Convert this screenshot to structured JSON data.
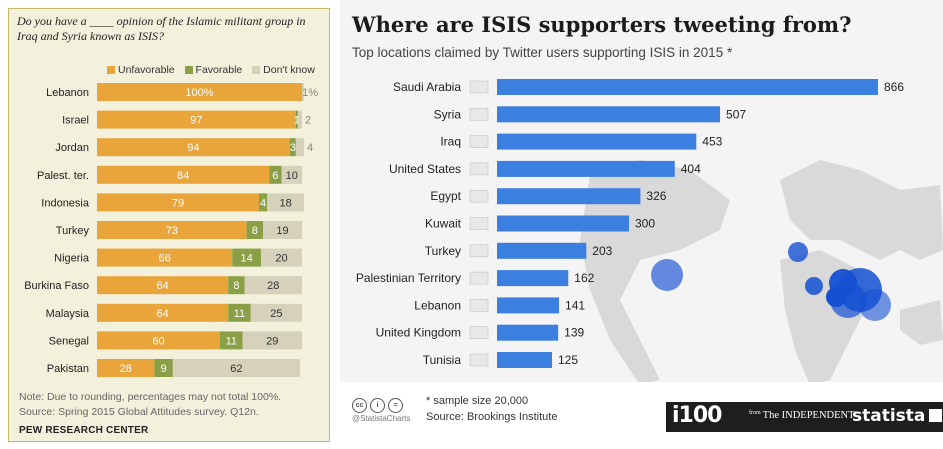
{
  "pew": {
    "question": "Do you have a ____ opinion of the Islamic militant group in Iraq and Syria known as ISIS?",
    "legend": {
      "unfavorable": "Unfavorable",
      "favorable": "Favorable",
      "dont_know": "Don't know"
    },
    "note": "Note: Due to rounding, percentages may not total 100%.",
    "source": "Source: Spring 2015 Global Attitudes survey. Q12n.",
    "org": "PEW RESEARCH CENTER",
    "colors": {
      "unfavorable": "#e9a43a",
      "favorable": "#8aa046",
      "dont_know": "#d5d1ba"
    }
  },
  "statista": {
    "title": "Where are ISIS supporters tweeting from?",
    "subtitle": "Top locations claimed by Twitter users supporting ISIS in 2015 *",
    "sample": "* sample size 20,000",
    "source": "Source: Brookings Institute",
    "handle": "@StatistaCharts",
    "brand_i100": "i100",
    "brand_from": "from",
    "brand_independent": "The INDEPENDENT",
    "brand_statista": "statista",
    "colors": {
      "bar": "#3b7fe0",
      "map": "#d9d9d9",
      "bubble": "#1450d2"
    }
  },
  "chart_data": [
    {
      "type": "bar",
      "stacked": true,
      "orientation": "horizontal",
      "categories": [
        "Lebanon",
        "Israel",
        "Jordan",
        "Palest. ter.",
        "Indonesia",
        "Turkey",
        "Nigeria",
        "Burkina Faso",
        "Malaysia",
        "Senegal",
        "Pakistan"
      ],
      "series": [
        {
          "name": "Unfavorable",
          "values": [
            100,
            97,
            94,
            84,
            79,
            73,
            66,
            64,
            64,
            60,
            28
          ],
          "labels": [
            "100%",
            "97",
            "94",
            "84",
            "79",
            "73",
            "66",
            "64",
            "64",
            "60",
            "28"
          ]
        },
        {
          "name": "Favorable",
          "values": [
            0,
            1,
            3,
            6,
            4,
            8,
            14,
            8,
            11,
            11,
            9
          ],
          "labels": [
            "",
            "1",
            "3",
            "6",
            "4",
            "8",
            "14",
            "8",
            "11",
            "11",
            "9"
          ]
        },
        {
          "name": "Don't know",
          "values": [
            1,
            2,
            4,
            10,
            18,
            19,
            20,
            28,
            25,
            29,
            62
          ],
          "labels": [
            "1%",
            "2",
            "4",
            "10",
            "18",
            "19",
            "20",
            "28",
            "25",
            "29",
            "62"
          ]
        }
      ]
    },
    {
      "type": "bar",
      "orientation": "horizontal",
      "categories": [
        "Saudi Arabia",
        "Syria",
        "Iraq",
        "United States",
        "Egypt",
        "Kuwait",
        "Turkey",
        "Palestinian Territory",
        "Lebanon",
        "United Kingdom",
        "Tunisia"
      ],
      "values": [
        866,
        507,
        453,
        404,
        326,
        300,
        203,
        162,
        141,
        139,
        125
      ],
      "xlim": [
        0,
        866
      ]
    }
  ]
}
